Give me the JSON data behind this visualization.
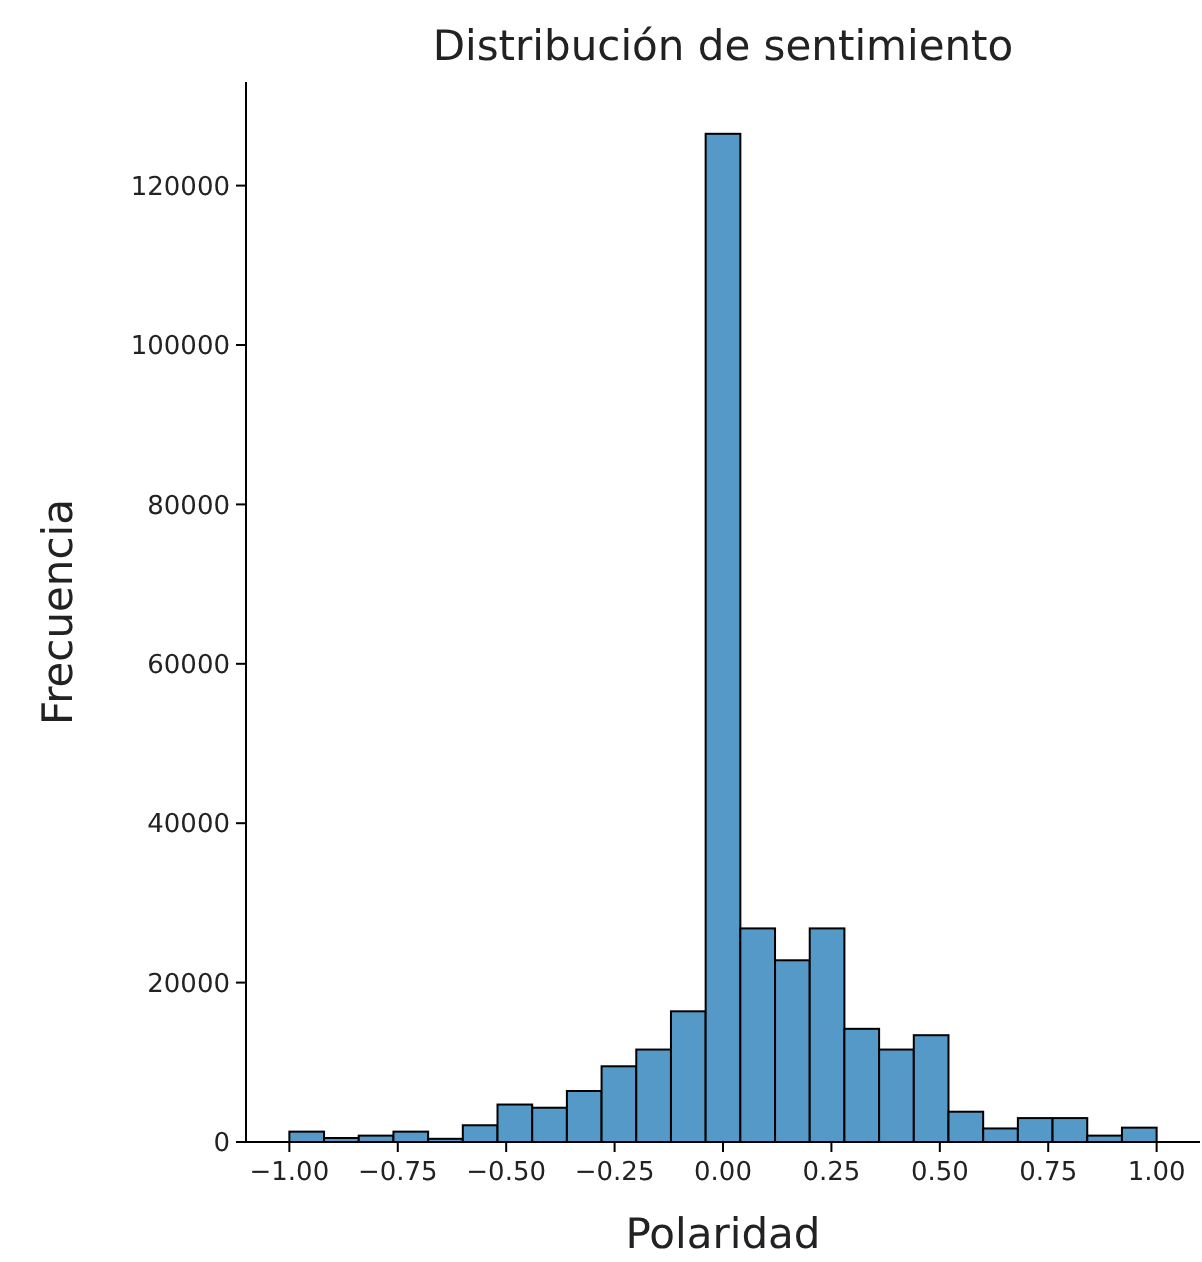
{
  "chart_data": {
    "type": "histogram",
    "title": "Distribución de sentimiento",
    "xlabel": "Polaridad",
    "ylabel": "Frecuencia",
    "bins": [
      -1,
      -0.92,
      -0.84,
      -0.76,
      -0.68,
      -0.6,
      -0.52,
      -0.44,
      -0.36,
      -0.28,
      -0.2,
      -0.12,
      -0.04,
      0.04,
      0.12,
      0.2,
      0.28,
      0.36,
      0.44,
      0.52,
      0.6,
      0.68,
      0.76,
      0.84,
      0.92,
      1
    ],
    "values": [
      1300,
      500,
      800,
      1300,
      400,
      2100,
      4700,
      4300,
      6400,
      9500,
      11600,
      16400,
      126500,
      26800,
      22800,
      26800,
      14200,
      11600,
      13400,
      3800,
      1700,
      3000,
      3000,
      800,
      1800
    ],
    "color": "#5499c7",
    "xlim": [
      -1.1,
      1.1
    ],
    "xticks": [
      {
        "value": -1,
        "label": "−1.00"
      },
      {
        "value": -0.75,
        "label": "−0.75"
      },
      {
        "value": -0.5,
        "label": "−0.50"
      },
      {
        "value": -0.25,
        "label": "−0.25"
      },
      {
        "value": 0,
        "label": "0.00"
      },
      {
        "value": 0.25,
        "label": "0.25"
      },
      {
        "value": 0.5,
        "label": "0.50"
      },
      {
        "value": 0.75,
        "label": "0.75"
      },
      {
        "value": 1,
        "label": "1.00"
      }
    ],
    "ylim": [
      0,
      133000
    ],
    "yticks": [
      0,
      20000,
      40000,
      60000,
      80000,
      100000,
      120000
    ]
  }
}
